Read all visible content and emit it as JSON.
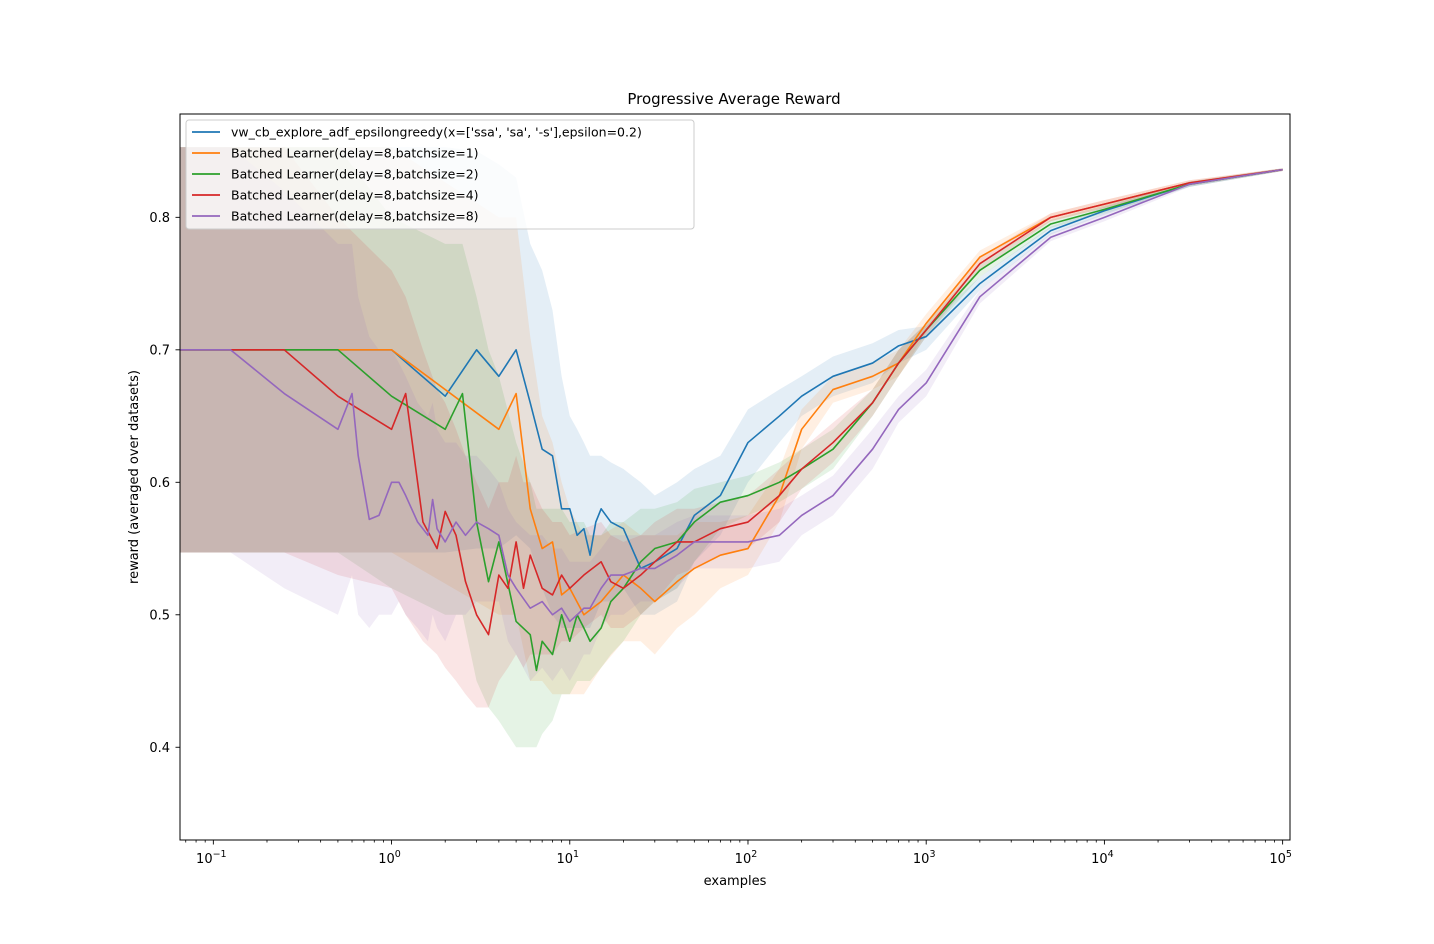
{
  "chart_data": {
    "type": "line",
    "title": "Progressive Average Reward",
    "xlabel": "examples",
    "ylabel": "reward (averaged over datasets)",
    "xscale": "log",
    "xlim": [
      0.065,
      110000
    ],
    "ylim": [
      0.33,
      0.878
    ],
    "grid": false,
    "legend_position": "upper-left",
    "x_ticks": [
      {
        "value": 0.1,
        "base": "10",
        "exp": "−1"
      },
      {
        "value": 1,
        "base": "10",
        "exp": "0"
      },
      {
        "value": 10,
        "base": "10",
        "exp": "1"
      },
      {
        "value": 100,
        "base": "10",
        "exp": "2"
      },
      {
        "value": 1000,
        "base": "10",
        "exp": "3"
      },
      {
        "value": 10000,
        "base": "10",
        "exp": "4"
      },
      {
        "value": 100000,
        "base": "10",
        "exp": "5"
      }
    ],
    "y_ticks": [
      {
        "value": 0.4,
        "label": "0.4"
      },
      {
        "value": 0.5,
        "label": "0.5"
      },
      {
        "value": 0.6,
        "label": "0.6"
      },
      {
        "value": 0.7,
        "label": "0.7"
      },
      {
        "value": 0.8,
        "label": "0.8"
      }
    ],
    "series": [
      {
        "name": "vw_cb_explore_adf_epsilongreedy(x=['ssa', 'sa', '-s'],epsilon=0.2)",
        "color": "#1f77b4",
        "x": [
          0.065,
          1,
          2,
          3,
          4,
          5,
          6,
          7,
          8,
          9,
          10,
          11,
          12,
          13,
          14,
          15,
          17,
          20,
          25,
          30,
          40,
          50,
          70,
          100,
          150,
          200,
          300,
          500,
          700,
          1000,
          2000,
          5000,
          10000,
          30000,
          100000
        ],
        "y": [
          0.7,
          0.7,
          0.665,
          0.7,
          0.68,
          0.7,
          0.66,
          0.625,
          0.62,
          0.58,
          0.58,
          0.56,
          0.565,
          0.545,
          0.57,
          0.58,
          0.57,
          0.565,
          0.535,
          0.54,
          0.55,
          0.575,
          0.59,
          0.63,
          0.65,
          0.665,
          0.68,
          0.69,
          0.703,
          0.71,
          0.75,
          0.79,
          0.805,
          0.825,
          0.836
        ],
        "band_upper": [
          0.853,
          0.853,
          0.853,
          0.85,
          0.84,
          0.83,
          0.78,
          0.76,
          0.73,
          0.68,
          0.65,
          0.64,
          0.63,
          0.62,
          0.62,
          0.62,
          0.615,
          0.61,
          0.6,
          0.59,
          0.6,
          0.61,
          0.62,
          0.655,
          0.67,
          0.68,
          0.695,
          0.705,
          0.715,
          0.718,
          0.755,
          0.793,
          0.808,
          0.827,
          0.837
        ],
        "band_lower": [
          0.547,
          0.547,
          0.547,
          0.55,
          0.55,
          0.56,
          0.55,
          0.52,
          0.5,
          0.49,
          0.49,
          0.49,
          0.49,
          0.49,
          0.5,
          0.51,
          0.51,
          0.52,
          0.5,
          0.5,
          0.51,
          0.54,
          0.56,
          0.6,
          0.63,
          0.65,
          0.665,
          0.675,
          0.69,
          0.7,
          0.745,
          0.787,
          0.802,
          0.823,
          0.835
        ]
      },
      {
        "name": "Batched Learner(delay=8,batchsize=1)",
        "color": "#ff7f0e",
        "x": [
          0.065,
          1,
          4,
          5,
          6,
          7,
          8,
          9,
          10,
          12,
          15,
          20,
          25,
          30,
          40,
          50,
          70,
          100,
          150,
          200,
          300,
          500,
          700,
          1000,
          2000,
          5000,
          10000,
          30000,
          100000
        ],
        "y": [
          0.7,
          0.7,
          0.64,
          0.667,
          0.58,
          0.55,
          0.555,
          0.515,
          0.52,
          0.5,
          0.51,
          0.53,
          0.52,
          0.51,
          0.525,
          0.535,
          0.545,
          0.55,
          0.59,
          0.64,
          0.67,
          0.68,
          0.69,
          0.72,
          0.77,
          0.8,
          0.81,
          0.826,
          0.836
        ],
        "band_upper": [
          0.853,
          0.853,
          0.8,
          0.8,
          0.71,
          0.65,
          0.63,
          0.6,
          0.58,
          0.56,
          0.56,
          0.57,
          0.56,
          0.56,
          0.56,
          0.57,
          0.57,
          0.575,
          0.61,
          0.655,
          0.68,
          0.69,
          0.7,
          0.727,
          0.775,
          0.803,
          0.813,
          0.828,
          0.837
        ],
        "band_lower": [
          0.547,
          0.547,
          0.5,
          0.5,
          0.45,
          0.45,
          0.44,
          0.44,
          0.44,
          0.44,
          0.46,
          0.48,
          0.48,
          0.47,
          0.49,
          0.5,
          0.52,
          0.53,
          0.57,
          0.625,
          0.66,
          0.67,
          0.68,
          0.713,
          0.765,
          0.797,
          0.807,
          0.824,
          0.835
        ]
      },
      {
        "name": "Batched Learner(delay=8,batchsize=2)",
        "color": "#2ca02c",
        "x": [
          0.065,
          0.5,
          1,
          2,
          2.5,
          3,
          3.5,
          4,
          5,
          6,
          6.5,
          7,
          8,
          9,
          10,
          11,
          12,
          13,
          15,
          17,
          20,
          25,
          30,
          40,
          50,
          70,
          100,
          150,
          200,
          300,
          500,
          700,
          1000,
          2000,
          5000,
          10000,
          30000,
          100000
        ],
        "y": [
          0.7,
          0.7,
          0.665,
          0.64,
          0.667,
          0.57,
          0.525,
          0.555,
          0.495,
          0.485,
          0.458,
          0.48,
          0.47,
          0.5,
          0.48,
          0.5,
          0.49,
          0.48,
          0.49,
          0.51,
          0.52,
          0.54,
          0.55,
          0.555,
          0.57,
          0.585,
          0.59,
          0.6,
          0.61,
          0.625,
          0.66,
          0.69,
          0.715,
          0.76,
          0.795,
          0.806,
          0.825,
          0.836
        ],
        "band_upper": [
          0.853,
          0.853,
          0.8,
          0.78,
          0.78,
          0.74,
          0.7,
          0.68,
          0.63,
          0.6,
          0.58,
          0.58,
          0.58,
          0.58,
          0.57,
          0.57,
          0.57,
          0.56,
          0.56,
          0.57,
          0.57,
          0.58,
          0.58,
          0.585,
          0.595,
          0.6,
          0.605,
          0.615,
          0.625,
          0.64,
          0.67,
          0.7,
          0.72,
          0.765,
          0.798,
          0.809,
          0.827,
          0.837
        ],
        "band_lower": [
          0.547,
          0.547,
          0.52,
          0.5,
          0.5,
          0.45,
          0.43,
          0.42,
          0.4,
          0.4,
          0.4,
          0.41,
          0.42,
          0.44,
          0.44,
          0.45,
          0.45,
          0.45,
          0.46,
          0.47,
          0.48,
          0.5,
          0.51,
          0.52,
          0.54,
          0.565,
          0.575,
          0.585,
          0.595,
          0.61,
          0.65,
          0.68,
          0.71,
          0.755,
          0.792,
          0.803,
          0.823,
          0.835
        ]
      },
      {
        "name": "Batched Learner(delay=8,batchsize=4)",
        "color": "#d62728",
        "x": [
          0.065,
          0.25,
          0.5,
          1,
          1.2,
          1.5,
          1.8,
          2,
          2.3,
          2.6,
          3,
          3.5,
          4,
          4.5,
          5,
          5.5,
          6,
          7,
          8,
          9,
          10,
          12,
          15,
          17,
          20,
          25,
          30,
          40,
          50,
          70,
          100,
          150,
          200,
          300,
          500,
          700,
          1000,
          2000,
          5000,
          10000,
          30000,
          100000
        ],
        "y": [
          0.7,
          0.7,
          0.665,
          0.64,
          0.667,
          0.57,
          0.55,
          0.578,
          0.56,
          0.525,
          0.5,
          0.485,
          0.53,
          0.52,
          0.555,
          0.52,
          0.545,
          0.52,
          0.515,
          0.53,
          0.52,
          0.53,
          0.54,
          0.525,
          0.52,
          0.53,
          0.54,
          0.555,
          0.555,
          0.565,
          0.57,
          0.59,
          0.61,
          0.63,
          0.66,
          0.69,
          0.715,
          0.765,
          0.8,
          0.81,
          0.826,
          0.836
        ],
        "band_upper": [
          0.853,
          0.853,
          0.8,
          0.76,
          0.74,
          0.7,
          0.67,
          0.66,
          0.64,
          0.62,
          0.6,
          0.58,
          0.6,
          0.6,
          0.62,
          0.6,
          0.6,
          0.58,
          0.57,
          0.57,
          0.56,
          0.565,
          0.57,
          0.56,
          0.555,
          0.56,
          0.57,
          0.58,
          0.58,
          0.585,
          0.59,
          0.61,
          0.625,
          0.645,
          0.67,
          0.7,
          0.72,
          0.77,
          0.803,
          0.813,
          0.828,
          0.837
        ],
        "band_lower": [
          0.547,
          0.547,
          0.53,
          0.52,
          0.5,
          0.48,
          0.47,
          0.46,
          0.45,
          0.44,
          0.43,
          0.43,
          0.45,
          0.46,
          0.47,
          0.46,
          0.47,
          0.47,
          0.47,
          0.48,
          0.48,
          0.49,
          0.5,
          0.49,
          0.49,
          0.5,
          0.51,
          0.53,
          0.535,
          0.545,
          0.55,
          0.57,
          0.595,
          0.615,
          0.65,
          0.68,
          0.71,
          0.76,
          0.797,
          0.807,
          0.824,
          0.835
        ]
      },
      {
        "name": "Batched Learner(delay=8,batchsize=8)",
        "color": "#9467bd",
        "x": [
          0.065,
          0.125,
          0.25,
          0.5,
          0.6,
          0.65,
          0.75,
          0.85,
          1,
          1.1,
          1.2,
          1.4,
          1.6,
          1.7,
          1.8,
          2,
          2.3,
          2.6,
          3,
          3.5,
          4,
          4.5,
          5,
          6,
          7,
          8,
          9,
          10,
          11,
          12,
          13,
          15,
          17,
          20,
          25,
          30,
          40,
          50,
          70,
          100,
          150,
          200,
          300,
          500,
          700,
          1000,
          2000,
          5000,
          10000,
          30000,
          100000
        ],
        "y": [
          0.7,
          0.7,
          0.667,
          0.64,
          0.667,
          0.62,
          0.572,
          0.575,
          0.6,
          0.6,
          0.59,
          0.57,
          0.56,
          0.587,
          0.565,
          0.555,
          0.57,
          0.56,
          0.57,
          0.565,
          0.56,
          0.53,
          0.52,
          0.505,
          0.51,
          0.5,
          0.505,
          0.495,
          0.5,
          0.505,
          0.505,
          0.52,
          0.53,
          0.53,
          0.535,
          0.535,
          0.545,
          0.555,
          0.555,
          0.555,
          0.56,
          0.575,
          0.59,
          0.625,
          0.655,
          0.675,
          0.74,
          0.785,
          0.8,
          0.825,
          0.836
        ],
        "band_upper": [
          0.853,
          0.853,
          0.82,
          0.78,
          0.78,
          0.74,
          0.71,
          0.7,
          0.7,
          0.69,
          0.68,
          0.66,
          0.65,
          0.66,
          0.64,
          0.63,
          0.63,
          0.62,
          0.62,
          0.61,
          0.6,
          0.58,
          0.57,
          0.56,
          0.56,
          0.55,
          0.55,
          0.54,
          0.54,
          0.54,
          0.54,
          0.55,
          0.56,
          0.56,
          0.56,
          0.56,
          0.57,
          0.575,
          0.575,
          0.575,
          0.58,
          0.59,
          0.605,
          0.64,
          0.665,
          0.685,
          0.745,
          0.788,
          0.803,
          0.827,
          0.837
        ],
        "band_lower": [
          0.547,
          0.547,
          0.52,
          0.5,
          0.53,
          0.5,
          0.49,
          0.5,
          0.5,
          0.51,
          0.5,
          0.49,
          0.48,
          0.5,
          0.49,
          0.48,
          0.5,
          0.5,
          0.51,
          0.51,
          0.51,
          0.48,
          0.47,
          0.45,
          0.46,
          0.45,
          0.46,
          0.45,
          0.46,
          0.47,
          0.47,
          0.49,
          0.5,
          0.5,
          0.51,
          0.51,
          0.52,
          0.535,
          0.535,
          0.535,
          0.54,
          0.56,
          0.575,
          0.61,
          0.645,
          0.665,
          0.735,
          0.782,
          0.797,
          0.823,
          0.835
        ]
      }
    ]
  }
}
